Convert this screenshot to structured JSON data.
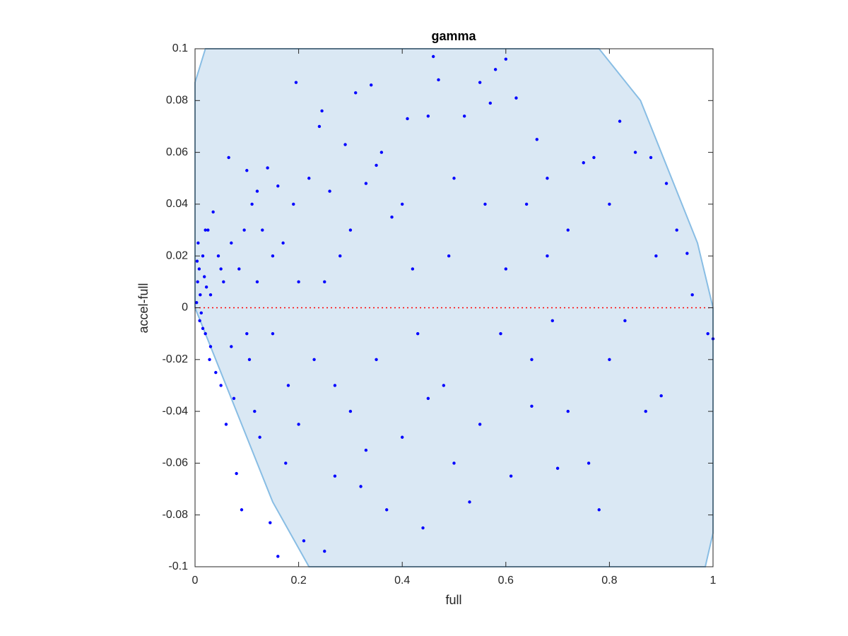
{
  "chart_data": {
    "type": "scatter",
    "title": "gamma",
    "xlabel": "full",
    "ylabel": "accel-full",
    "xlim": [
      0,
      1
    ],
    "ylim": [
      -0.1,
      0.1
    ],
    "xticks": [
      0,
      0.2,
      0.4,
      0.6,
      0.8,
      1
    ],
    "yticks": [
      -0.1,
      -0.08,
      -0.06,
      -0.04,
      -0.02,
      0,
      0.02,
      0.04,
      0.06,
      0.08,
      0.1
    ],
    "color": "#0000ff",
    "region": {
      "color": "#dae8f4",
      "edge": "#88bde4",
      "x": [
        0,
        0.02,
        0.78,
        0.86,
        0.92,
        0.97,
        1,
        1,
        0.985,
        0.22,
        0.15,
        0.1,
        0.05,
        0
      ],
      "y": [
        0.087,
        0.1,
        0.1,
        0.08,
        0.05,
        0.025,
        0,
        -0.087,
        -0.1,
        -0.1,
        -0.075,
        -0.05,
        -0.025,
        0
      ]
    },
    "hline": {
      "value": 0,
      "color": "#ff0000"
    },
    "x": [
      0.005,
      0.01,
      0.008,
      0.012,
      0.003,
      0.015,
      0.02,
      0.018,
      0.025,
      0.03,
      0.006,
      0.009,
      0.004,
      0.022,
      0.028,
      0.035,
      0.04,
      0.045,
      0.05,
      0.055,
      0.06,
      0.065,
      0.07,
      0.075,
      0.08,
      0.085,
      0.09,
      0.095,
      0.1,
      0.105,
      0.11,
      0.115,
      0.12,
      0.125,
      0.13,
      0.14,
      0.145,
      0.15,
      0.16,
      0.16,
      0.17,
      0.175,
      0.18,
      0.19,
      0.2,
      0.2,
      0.21,
      0.22,
      0.23,
      0.24,
      0.245,
      0.25,
      0.26,
      0.27,
      0.28,
      0.29,
      0.3,
      0.31,
      0.32,
      0.33,
      0.34,
      0.35,
      0.36,
      0.37,
      0.38,
      0.4,
      0.41,
      0.42,
      0.44,
      0.45,
      0.46,
      0.47,
      0.48,
      0.49,
      0.5,
      0.52,
      0.53,
      0.55,
      0.56,
      0.57,
      0.58,
      0.59,
      0.6,
      0.61,
      0.62,
      0.64,
      0.65,
      0.66,
      0.68,
      0.69,
      0.7,
      0.72,
      0.75,
      0.76,
      0.77,
      0.78,
      0.8,
      0.82,
      0.83,
      0.85,
      0.87,
      0.88,
      0.89,
      0.9,
      0.91,
      0.93,
      0.95,
      0.96,
      0.99,
      1,
      0.195,
      0.3,
      0.35,
      0.43,
      0.5,
      0.55,
      0.6,
      0.65,
      0.72,
      0.8,
      0.68,
      0.15,
      0.1,
      0.05,
      0.03,
      0.015,
      0.02,
      0.07,
      0.12,
      0.25,
      0.27,
      0.4,
      0.45,
      0.33
    ],
    "values": [
      0.01,
      0.005,
      0.015,
      -0.002,
      0.002,
      0.02,
      -0.01,
      0.012,
      0.03,
      -0.015,
      0.025,
      -0.005,
      0.018,
      0.008,
      -0.02,
      0.037,
      -0.025,
      0.02,
      -0.03,
      0.01,
      -0.045,
      0.058,
      0.025,
      -0.035,
      -0.064,
      0.015,
      -0.078,
      0.03,
      0.053,
      -0.02,
      0.04,
      -0.04,
      0.01,
      -0.05,
      0.03,
      0.054,
      -0.083,
      -0.01,
      -0.096,
      0.047,
      0.025,
      -0.06,
      -0.03,
      0.04,
      0.01,
      -0.045,
      -0.09,
      0.05,
      -0.02,
      0.07,
      0.076,
      -0.094,
      0.045,
      -0.065,
      0.02,
      0.063,
      -0.04,
      0.083,
      -0.069,
      0.048,
      0.086,
      -0.02,
      0.06,
      -0.078,
      0.035,
      -0.05,
      0.073,
      0.015,
      -0.085,
      0.074,
      0.097,
      0.088,
      -0.03,
      0.02,
      -0.06,
      0.074,
      -0.075,
      0.087,
      0.04,
      0.079,
      0.092,
      -0.01,
      0.096,
      -0.065,
      0.081,
      0.04,
      -0.038,
      0.065,
      0.02,
      -0.005,
      -0.062,
      0.03,
      0.056,
      -0.06,
      0.058,
      -0.078,
      0.04,
      0.072,
      -0.005,
      0.06,
      -0.04,
      0.058,
      0.02,
      -0.034,
      0.048,
      0.03,
      0.021,
      0.005,
      -0.01,
      -0.012,
      0.087,
      0.03,
      0.055,
      -0.01,
      0.05,
      -0.045,
      0.015,
      -0.02,
      -0.04,
      -0.02,
      0.05,
      0.02,
      -0.01,
      0.015,
      0.005,
      -0.008,
      0.03,
      -0.015,
      0.045,
      0.01,
      -0.03,
      0.04,
      -0.035,
      -0.055
    ]
  }
}
